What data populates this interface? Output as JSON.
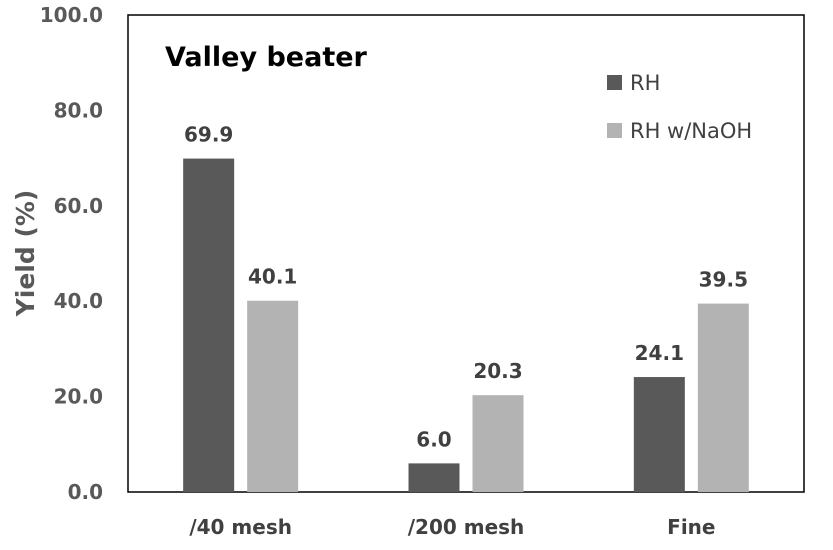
{
  "chart_data": {
    "type": "bar",
    "title": "Valley beater",
    "xlabel": "",
    "ylabel": "Yield (%)",
    "categories": [
      "/40 mesh",
      "/200 mesh",
      "Fine"
    ],
    "series": [
      {
        "name": "RH",
        "values": [
          69.9,
          6.0,
          24.1
        ],
        "labels": [
          "69.9",
          "6.0",
          "24.1"
        ],
        "color": "#595959"
      },
      {
        "name": "RH w/NaOH",
        "values": [
          40.1,
          20.3,
          39.5
        ],
        "labels": [
          "40.1",
          "20.3",
          "39.5"
        ],
        "color": "#b3b3b3"
      }
    ],
    "ylim": [
      0,
      100
    ],
    "yticks": [
      0,
      20,
      40,
      60,
      80,
      100
    ],
    "ytick_labels": [
      "0.0",
      "20.0",
      "40.0",
      "60.0",
      "80.0",
      "100.0"
    ],
    "grid": false,
    "legend_position": "top-right",
    "frame_color": "#000000"
  }
}
